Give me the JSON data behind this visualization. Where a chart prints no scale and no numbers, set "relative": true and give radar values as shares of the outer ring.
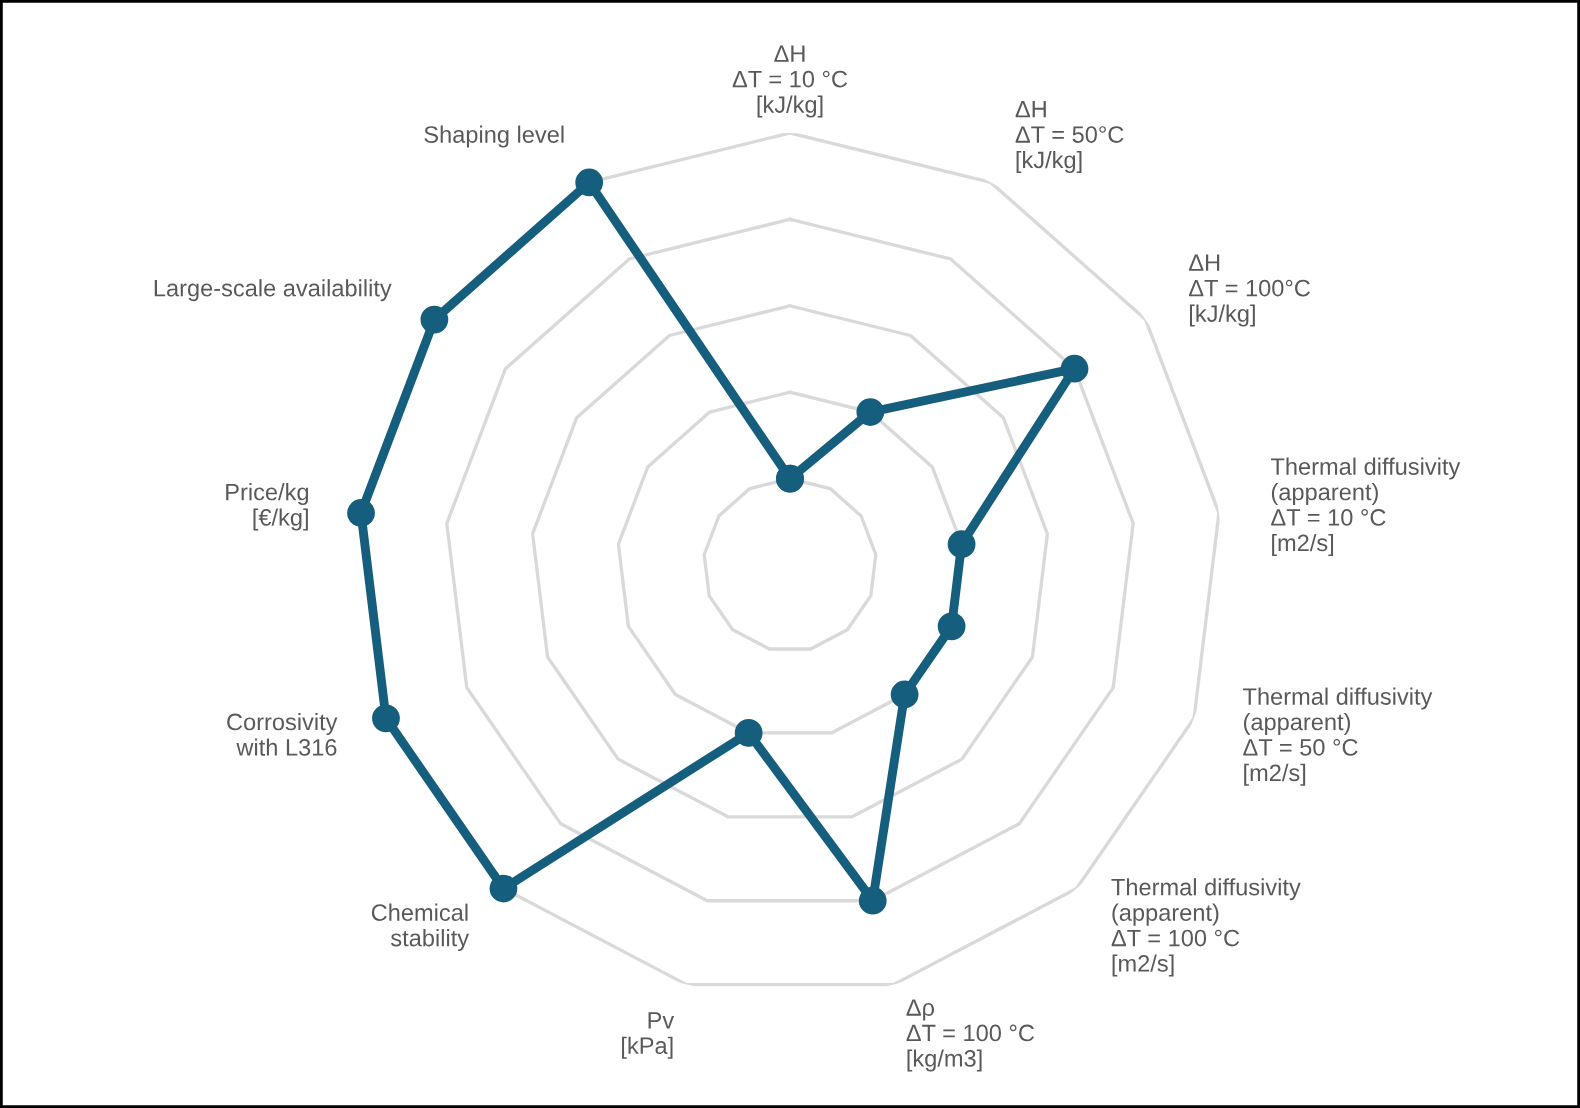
{
  "chart_data": {
    "type": "radar",
    "relative": true,
    "grid": true,
    "marker": "circle",
    "legend": false,
    "categories": [
      "ΔH\nΔT = 10 °C\n[kJ/kg]",
      "ΔH\nΔT = 50°C\n[kJ/kg]",
      "ΔH\nΔT = 100°C\n[kJ/kg]",
      "Thermal diffusivity\n(apparent)\nΔT = 10 °C\n[m2/s]",
      "Thermal diffusivity\n(apparent)\nΔT = 50 °C\n[m2/s]",
      "Thermal diffusivity\n(apparent)\nΔT = 100 °C\n[m2/s]",
      "Δρ\nΔT = 100 °C\n[kg/m3]",
      "Pv\n[kPa]",
      "Chemical\nstability",
      "Corrosivity\nwith L316",
      "Price/kg\n[€/kg]",
      "Large-scale availability",
      "Shaping level"
    ],
    "series": [
      {
        "color": "#165e7e",
        "values": [
          0.2,
          0.4,
          0.8,
          0.4,
          0.4,
          0.4,
          0.8,
          0.4,
          1.0,
          1.0,
          1.0,
          1.0,
          1.0
        ]
      }
    ]
  }
}
